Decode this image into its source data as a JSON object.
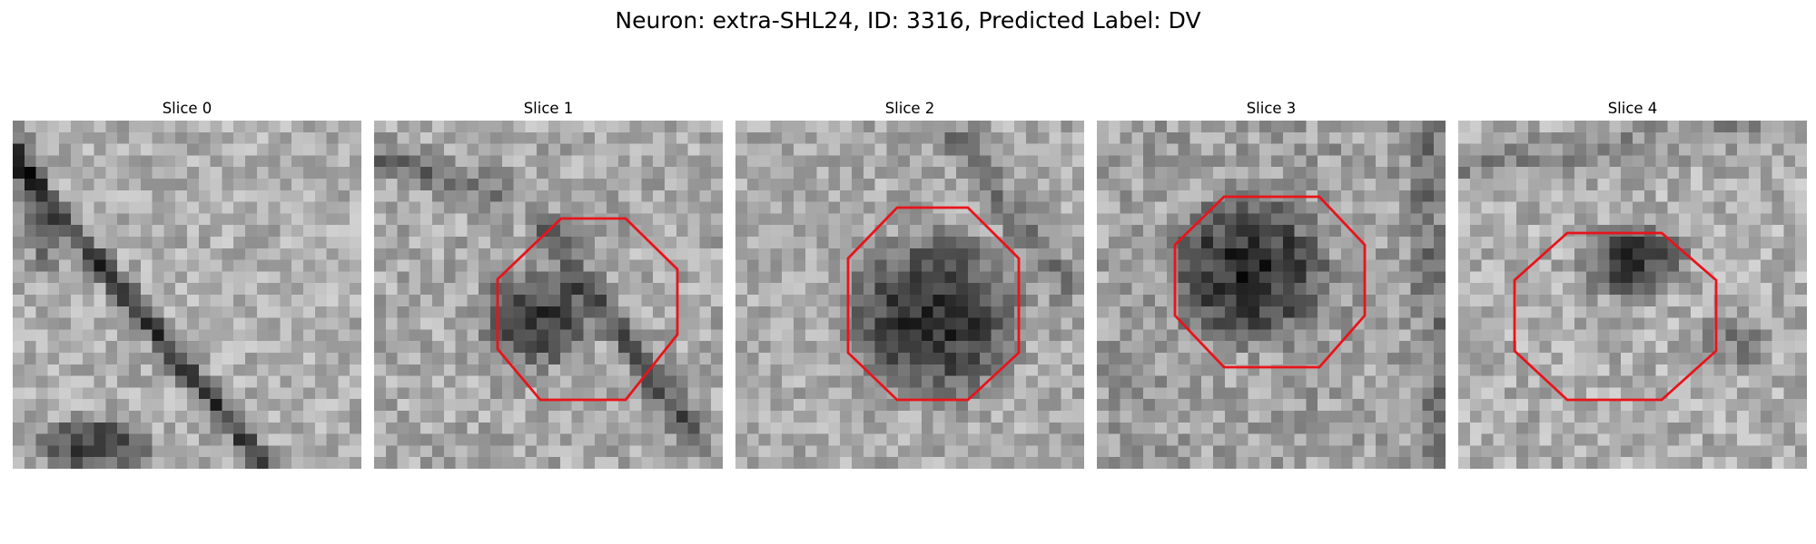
{
  "figure": {
    "title": "Neuron: extra-SHL24, ID: 3316, Predicted Label: DV"
  },
  "panels": [
    {
      "title": "Slice 0",
      "has_outline": false
    },
    {
      "title": "Slice 1",
      "has_outline": true
    },
    {
      "title": "Slice 2",
      "has_outline": true
    },
    {
      "title": "Slice 3",
      "has_outline": true
    },
    {
      "title": "Slice 4",
      "has_outline": true
    }
  ],
  "colors": {
    "outline": "#e8141b",
    "background": "#ffffff",
    "text": "#000000"
  },
  "colormap": "gray"
}
